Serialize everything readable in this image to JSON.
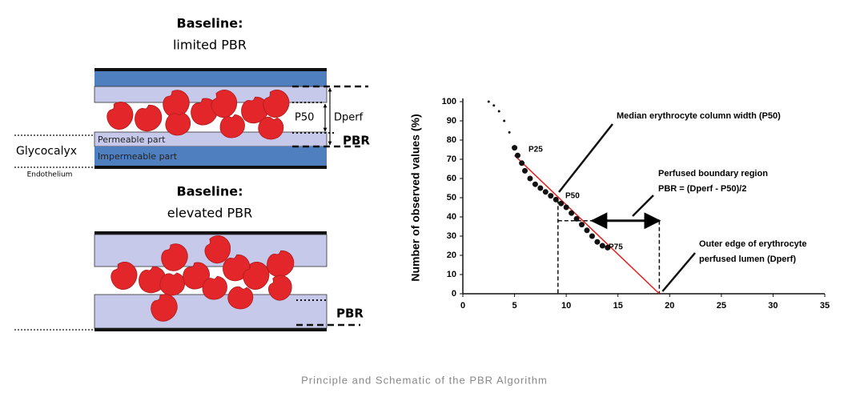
{
  "caption": "Principle and Schematic of the PBR Algorithm",
  "schematic_top": {
    "title": "Baseline:",
    "subtitle": "limited PBR",
    "labels": {
      "p50": "P50",
      "dperf": "Dperf",
      "pbr": "PBR",
      "glycocalyx": "Glycocalyx",
      "endothelium": "Endothelium",
      "permeable": "Permeable part",
      "impermeable": "Impermeable part"
    }
  },
  "schematic_bottom": {
    "title": "Baseline:",
    "subtitle": "elevated PBR",
    "labels": {
      "pbr": "PBR"
    }
  },
  "chart_data": {
    "type": "scatter",
    "ylabel": "Number of observed values (%)",
    "x": [
      2.5,
      3,
      3.5,
      4,
      4.5,
      5,
      5.3,
      5.7,
      6,
      6.5,
      7,
      7.5,
      8,
      8.5,
      9,
      9.5,
      10,
      10.5,
      11,
      11.5,
      12,
      12.5,
      13,
      13.5,
      14
    ],
    "values": [
      100,
      98,
      95,
      90,
      84,
      76,
      72,
      68,
      64,
      60,
      57,
      55,
      53,
      51,
      49,
      47,
      45,
      42,
      39,
      36,
      33,
      30,
      27,
      25,
      24
    ],
    "color": "#111111",
    "fit": {
      "x": [
        5,
        19
      ],
      "values": [
        72,
        0
      ],
      "color": "#e02020"
    },
    "p50_x": 9.2,
    "dperf_x": 19,
    "pbr_y": 38,
    "xlim": [
      0,
      35
    ],
    "ylim": [
      0,
      100
    ],
    "xticks": [
      0,
      5,
      10,
      15,
      20,
      25,
      30,
      35
    ],
    "yticks": [
      0,
      10,
      20,
      30,
      40,
      50,
      60,
      70,
      80,
      90,
      100
    ],
    "annotations": {
      "p25": "P25",
      "p50": "P50",
      "p75": "P75",
      "median": "Median erythrocyte column width (P50)",
      "boundary1": "Perfused boundary region",
      "boundary2": "PBR = (Dperf - P50)/2",
      "edge1": "Outer edge of erythrocyte",
      "edge2": "perfused lumen (Dperf)"
    }
  }
}
